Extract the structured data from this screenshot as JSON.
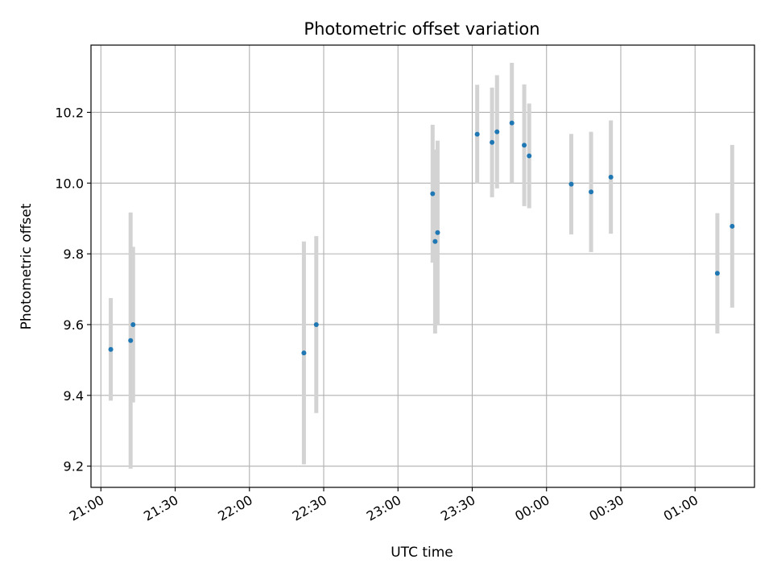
{
  "chart_data": {
    "type": "scatter",
    "title": "Photometric offset variation",
    "xlabel": "UTC time",
    "ylabel": "Photometric offset",
    "x_axis_kind": "time",
    "xlim": [
      "20:56",
      "01:24"
    ],
    "ylim": [
      9.14,
      10.39
    ],
    "x_ticks": [
      "21:00",
      "21:30",
      "22:00",
      "22:30",
      "23:00",
      "23:30",
      "00:00",
      "00:30",
      "01:00"
    ],
    "y_ticks": [
      "9.2",
      "9.4",
      "9.6",
      "9.8",
      "10.0",
      "10.2"
    ],
    "grid": true,
    "legend": "none",
    "colors": {
      "point": "#1f77b4",
      "errorbar": "#d3d3d3",
      "grid": "#b0b0b0"
    },
    "series": [
      {
        "points": [
          {
            "x": "21:04",
            "y": 9.53,
            "yerr": 0.145
          },
          {
            "x": "21:12",
            "y": 9.555,
            "yerr": 0.362
          },
          {
            "x": "21:13",
            "y": 9.6,
            "yerr": 0.22
          },
          {
            "x": "22:22",
            "y": 9.52,
            "yerr": 0.315
          },
          {
            "x": "22:27",
            "y": 9.6,
            "yerr": 0.25
          },
          {
            "x": "23:14",
            "y": 9.97,
            "yerr": 0.195
          },
          {
            "x": "23:15",
            "y": 9.835,
            "yerr": 0.26
          },
          {
            "x": "23:16",
            "y": 9.86,
            "yerr": 0.26
          },
          {
            "x": "23:32",
            "y": 10.138,
            "yerr": 0.14
          },
          {
            "x": "23:38",
            "y": 10.115,
            "yerr": 0.155
          },
          {
            "x": "23:40",
            "y": 10.145,
            "yerr": 0.16
          },
          {
            "x": "23:46",
            "y": 10.17,
            "yerr": 0.17
          },
          {
            "x": "23:51",
            "y": 10.107,
            "yerr": 0.172
          },
          {
            "x": "23:53",
            "y": 10.077,
            "yerr": 0.148
          },
          {
            "x": "00:10",
            "y": 9.997,
            "yerr": 0.142
          },
          {
            "x": "00:18",
            "y": 9.975,
            "yerr": 0.17
          },
          {
            "x": "00:26",
            "y": 10.017,
            "yerr": 0.16
          },
          {
            "x": "01:09",
            "y": 9.745,
            "yerr": 0.17
          },
          {
            "x": "01:15",
            "y": 9.878,
            "yerr": 0.23
          }
        ]
      }
    ]
  }
}
